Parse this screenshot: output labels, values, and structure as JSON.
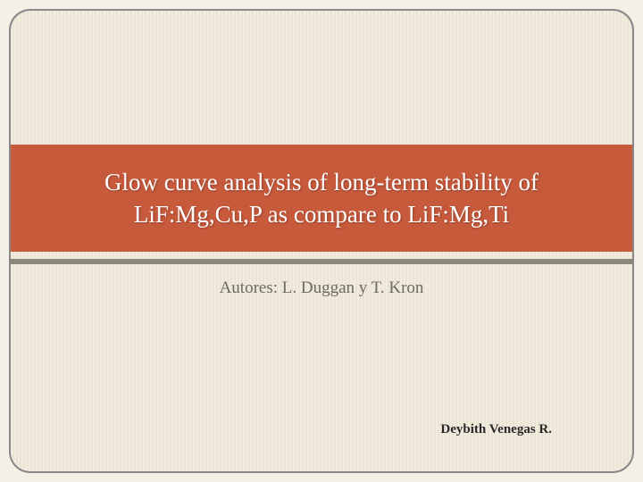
{
  "slide": {
    "title": "Glow curve analysis of long-term stability of LiF:Mg,Cu,P as compare to LiF:Mg,Ti",
    "authors": "Autores: L. Duggan y T. Kron",
    "presenter": "Deybith Venegas R.",
    "title_band_color": "#c85a3c",
    "title_text_color": "#ffffff",
    "underline_color": "#8a8a7a",
    "background_stripe_a": "#f2ecdf",
    "background_stripe_b": "#ebe4d4",
    "frame_border_color": "#888888",
    "frame_border_radius": 24,
    "authors_color": "#6b6b5e",
    "presenter_color": "#2a2a2a",
    "title_fontsize": 27,
    "authors_fontsize": 19,
    "presenter_fontsize": 15
  }
}
